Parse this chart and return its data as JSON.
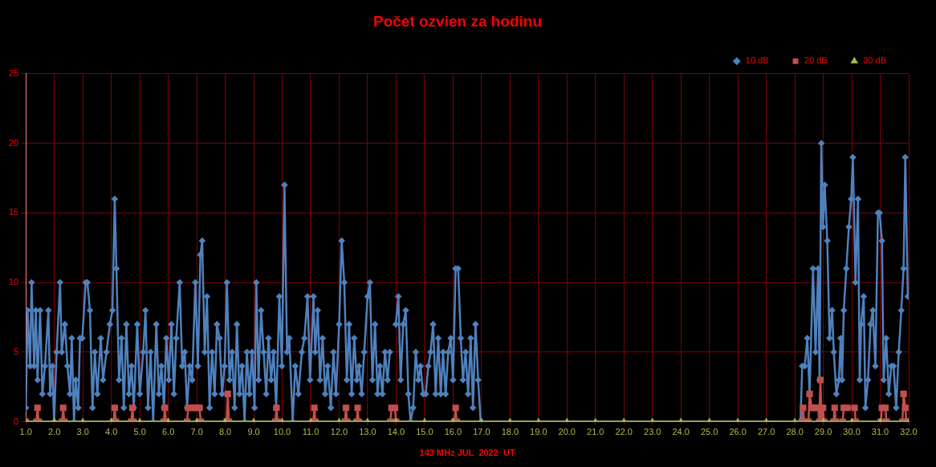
{
  "chart_data": {
    "type": "line",
    "title": "Počet ozvien za hodinu",
    "xlabel": "143 MHz JUL  2022  UT",
    "xlim": [
      1,
      32
    ],
    "xticks": [
      {
        "value": 1,
        "label": "1.0"
      },
      {
        "value": 2,
        "label": "2.0"
      },
      {
        "value": 3,
        "label": "3.0"
      },
      {
        "value": 4,
        "label": "4.0"
      },
      {
        "value": 5,
        "label": "5.0"
      },
      {
        "value": 6,
        "label": "6.0"
      },
      {
        "value": 7,
        "label": "7.0"
      },
      {
        "value": 8,
        "label": "8.0"
      },
      {
        "value": 9,
        "label": "9.0"
      },
      {
        "value": 10,
        "label": "10.0"
      },
      {
        "value": 11,
        "label": "11.0"
      },
      {
        "value": 12,
        "label": "12.0"
      },
      {
        "value": 13,
        "label": "13.0"
      },
      {
        "value": 14,
        "label": "14.0"
      },
      {
        "value": 15,
        "label": "15.0"
      },
      {
        "value": 16,
        "label": "16.0"
      },
      {
        "value": 17,
        "label": "17.0"
      },
      {
        "value": 18,
        "label": "18.0"
      },
      {
        "value": 19,
        "label": "19.0"
      },
      {
        "value": 20,
        "label": "20.0"
      },
      {
        "value": 21,
        "label": "21.0"
      },
      {
        "value": 22,
        "label": "22.0"
      },
      {
        "value": 23,
        "label": "23.0"
      },
      {
        "value": 24,
        "label": "24.0"
      },
      {
        "value": 25,
        "label": "25.0"
      },
      {
        "value": 26,
        "label": "26.0"
      },
      {
        "value": 27,
        "label": "27.0"
      },
      {
        "value": 28,
        "label": "28.0"
      },
      {
        "value": 29,
        "label": "29.0"
      },
      {
        "value": 30,
        "label": "30.0"
      },
      {
        "value": 31,
        "label": "31.0"
      },
      {
        "value": 32,
        "label": "32.0"
      }
    ],
    "ylim": [
      0,
      25
    ],
    "yticks": [
      0,
      5,
      10,
      15,
      20,
      25
    ],
    "grid": true,
    "legend": "top right",
    "series": [
      {
        "name": "10 dB",
        "color": "#4f81bd",
        "marker": "diamond",
        "x": [
          1.0,
          1.06,
          1.15,
          1.2,
          1.29,
          1.35,
          1.41,
          1.5,
          1.58,
          1.67,
          1.79,
          1.85,
          1.93,
          1.99,
          2.08,
          2.2,
          2.26,
          2.37,
          2.46,
          2.55,
          2.61,
          2.69,
          2.75,
          2.84,
          2.9,
          2.98,
          3.1,
          3.16,
          3.25,
          3.34,
          3.42,
          3.51,
          3.63,
          3.71,
          3.83,
          3.95,
          4.04,
          4.12,
          4.18,
          4.27,
          4.36,
          4.44,
          4.53,
          4.62,
          4.71,
          4.79,
          4.91,
          5.0,
          5.12,
          5.2,
          5.29,
          5.38,
          5.47,
          5.58,
          5.67,
          5.76,
          5.85,
          5.93,
          6.02,
          6.11,
          6.2,
          6.28,
          6.4,
          6.49,
          6.58,
          6.66,
          6.75,
          6.84,
          6.95,
          7.04,
          7.13,
          7.19,
          7.28,
          7.36,
          7.45,
          7.54,
          7.63,
          7.71,
          7.8,
          7.89,
          7.98,
          8.06,
          8.15,
          8.24,
          8.33,
          8.41,
          8.5,
          8.59,
          8.68,
          8.76,
          8.85,
          8.94,
          9.03,
          9.09,
          9.17,
          9.26,
          9.35,
          9.44,
          9.52,
          9.61,
          9.7,
          9.79,
          9.9,
          9.99,
          10.08,
          10.17,
          10.25,
          10.37,
          10.46,
          10.57,
          10.69,
          10.78,
          10.89,
          10.98,
          11.1,
          11.16,
          11.25,
          11.33,
          11.42,
          11.51,
          11.6,
          11.71,
          11.8,
          11.89,
          12.0,
          12.09,
          12.18,
          12.27,
          12.35,
          12.44,
          12.53,
          12.62,
          12.7,
          12.79,
          12.88,
          13.0,
          13.08,
          13.17,
          13.26,
          13.35,
          13.43,
          13.52,
          13.61,
          13.7,
          13.78,
          13.87,
          13.99,
          14.08,
          14.16,
          14.25,
          14.34,
          14.43,
          14.51,
          14.6,
          14.69,
          14.78,
          14.86,
          14.95,
          15.04,
          15.13,
          15.21,
          15.3,
          15.39,
          15.48,
          15.57,
          15.65,
          15.74,
          15.83,
          15.92,
          16.0,
          16.09,
          16.18,
          16.27,
          16.35,
          16.44,
          16.53,
          16.62,
          16.7,
          16.79,
          16.88,
          16.97,
          28.2,
          28.26,
          28.35,
          28.44,
          28.52,
          28.64,
          28.73,
          28.82,
          28.87,
          28.93,
          28.99,
          29.05,
          29.14,
          29.22,
          29.31,
          29.37,
          29.46,
          29.55,
          29.61,
          29.66,
          29.72,
          29.81,
          29.9,
          29.98,
          30.04,
          30.13,
          30.22,
          30.28,
          30.33,
          30.42,
          30.48,
          30.57,
          30.66,
          30.74,
          30.83,
          30.92,
          30.98,
          31.06,
          31.12,
          31.21,
          31.3,
          31.39,
          31.47,
          31.56,
          31.65,
          31.74,
          31.82,
          31.88,
          31.97
        ],
        "values": [
          1,
          8,
          4,
          10,
          4,
          8,
          3,
          8,
          2,
          4,
          8,
          2,
          4,
          0,
          5,
          10,
          5,
          7,
          4,
          2,
          6,
          0,
          3,
          1,
          6,
          6,
          10,
          10,
          8,
          1,
          5,
          2,
          6,
          3,
          5,
          7,
          8,
          16,
          11,
          3,
          6,
          1,
          7,
          2,
          4,
          1,
          7,
          2,
          5,
          8,
          1,
          5,
          0,
          7,
          2,
          4,
          1,
          6,
          3,
          7,
          2,
          6,
          10,
          4,
          5,
          1,
          4,
          3,
          10,
          4,
          12,
          13,
          5,
          9,
          1,
          5,
          2,
          7,
          6,
          2,
          4,
          10,
          3,
          5,
          1,
          7,
          2,
          4,
          0,
          5,
          2,
          5,
          1,
          10,
          3,
          8,
          5,
          2,
          6,
          3,
          5,
          1,
          9,
          4,
          17,
          5,
          6,
          0,
          4,
          2,
          5,
          6,
          9,
          3,
          9,
          5,
          8,
          3,
          6,
          2,
          4,
          1,
          5,
          2,
          7,
          13,
          10,
          3,
          7,
          2,
          6,
          3,
          4,
          2,
          5,
          9,
          10,
          3,
          7,
          2,
          4,
          2,
          5,
          3,
          5,
          null,
          7,
          9,
          3,
          7,
          8,
          2,
          0,
          1,
          5,
          3,
          4,
          2,
          2,
          4,
          5,
          7,
          2,
          6,
          2,
          5,
          2,
          5,
          6,
          3,
          11,
          11,
          6,
          3,
          5,
          2,
          6,
          1,
          7,
          3,
          0,
          0,
          4,
          4,
          6,
          2,
          11,
          5,
          11,
          3,
          20,
          14,
          17,
          13,
          6,
          8,
          5,
          2,
          3,
          6,
          3,
          8,
          11,
          14,
          16,
          19,
          10,
          16,
          3,
          7,
          9,
          1,
          3,
          7,
          8,
          4,
          15,
          15,
          13,
          3,
          6,
          2,
          4,
          4,
          1,
          5,
          8,
          11,
          19,
          9
        ]
      },
      {
        "name": "20 dB",
        "color": "#c0504d",
        "marker": "square",
        "x": [
          1.0,
          1.37,
          1.41,
          1.45,
          2.27,
          2.31,
          2.35,
          4.08,
          4.12,
          4.16,
          4.7,
          4.74,
          4.78,
          5.84,
          5.88,
          5.92,
          6.66,
          6.7,
          6.8,
          6.9,
          7.0,
          7.1,
          7.14,
          8.05,
          8.09,
          8.13,
          9.76,
          9.8,
          9.84,
          11.09,
          11.13,
          11.17,
          12.2,
          12.24,
          12.28,
          12.61,
          12.65,
          12.69,
          13.8,
          13.84,
          13.96,
          14.0,
          16.05,
          16.09,
          16.13,
          28.25,
          28.29,
          28.33,
          28.48,
          28.52,
          28.6,
          28.64,
          28.76,
          28.82,
          28.86,
          28.9,
          28.94,
          28.99,
          29.03,
          29.36,
          29.4,
          29.44,
          29.68,
          29.72,
          29.85,
          30.1,
          30.14,
          31.02,
          31.06,
          31.18,
          31.22,
          31.78,
          31.82,
          31.88,
          31.92,
          32.0
        ],
        "values": [
          0,
          0,
          1,
          0,
          0,
          1,
          0,
          0,
          1,
          0,
          0,
          1,
          0,
          0,
          1,
          0,
          0,
          1,
          1,
          1,
          1,
          1,
          0,
          0,
          2,
          0,
          0,
          1,
          0,
          0,
          1,
          0,
          0,
          1,
          0,
          0,
          1,
          0,
          0,
          1,
          1,
          0,
          0,
          1,
          0,
          0,
          1,
          0,
          0,
          2,
          1,
          1,
          1,
          1,
          0,
          3,
          0,
          1,
          0,
          0,
          1,
          0,
          0,
          1,
          1,
          1,
          0,
          0,
          1,
          1,
          0,
          0,
          2,
          1,
          0,
          0
        ]
      },
      {
        "name": "30 dB",
        "color": "#9bbb59",
        "marker": "triangle",
        "x": [
          1,
          2,
          3,
          4,
          5,
          6,
          7,
          8,
          9,
          10,
          11,
          12,
          13,
          14,
          15,
          16,
          17,
          18,
          19,
          20,
          21,
          22,
          23,
          24,
          25,
          26,
          27,
          28,
          29,
          30,
          31,
          32
        ],
        "values": [
          0,
          0,
          0,
          0,
          0,
          0,
          0,
          0,
          0,
          0,
          0,
          0,
          0,
          0,
          0,
          0,
          0,
          0,
          0,
          0,
          0,
          0,
          0,
          0,
          0,
          0,
          0,
          0,
          0,
          0,
          0,
          0
        ]
      }
    ]
  }
}
